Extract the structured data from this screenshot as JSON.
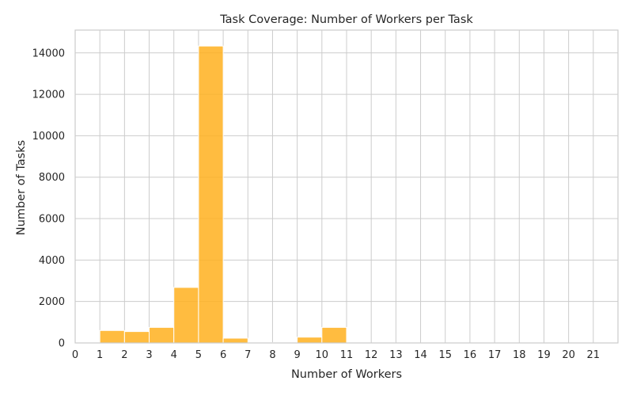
{
  "chart_data": {
    "type": "bar",
    "title": "Task Coverage: Number of Workers per Task",
    "xlabel": "Number of Workers",
    "ylabel": "Number of Tasks",
    "xlim": [
      0,
      22
    ],
    "ylim": [
      0,
      15100
    ],
    "x_ticks": [
      "0",
      "1",
      "2",
      "3",
      "4",
      "5",
      "6",
      "7",
      "8",
      "9",
      "10",
      "11",
      "12",
      "13",
      "14",
      "15",
      "16",
      "17",
      "18",
      "19",
      "20",
      "21"
    ],
    "y_ticks": [
      "0",
      "2000",
      "4000",
      "6000",
      "8000",
      "10000",
      "12000",
      "14000"
    ],
    "bins": [
      {
        "start": 1,
        "end": 2,
        "value": 600
      },
      {
        "start": 2,
        "end": 3,
        "value": 550
      },
      {
        "start": 3,
        "end": 4,
        "value": 750
      },
      {
        "start": 4,
        "end": 5,
        "value": 2680
      },
      {
        "start": 5,
        "end": 6,
        "value": 14330
      },
      {
        "start": 6,
        "end": 7,
        "value": 230
      },
      {
        "start": 7,
        "end": 8,
        "value": 10
      },
      {
        "start": 8,
        "end": 9,
        "value": 10
      },
      {
        "start": 9,
        "end": 10,
        "value": 280
      },
      {
        "start": 10,
        "end": 11,
        "value": 750
      }
    ],
    "bar_color": "#ffb01f",
    "grid": true
  }
}
